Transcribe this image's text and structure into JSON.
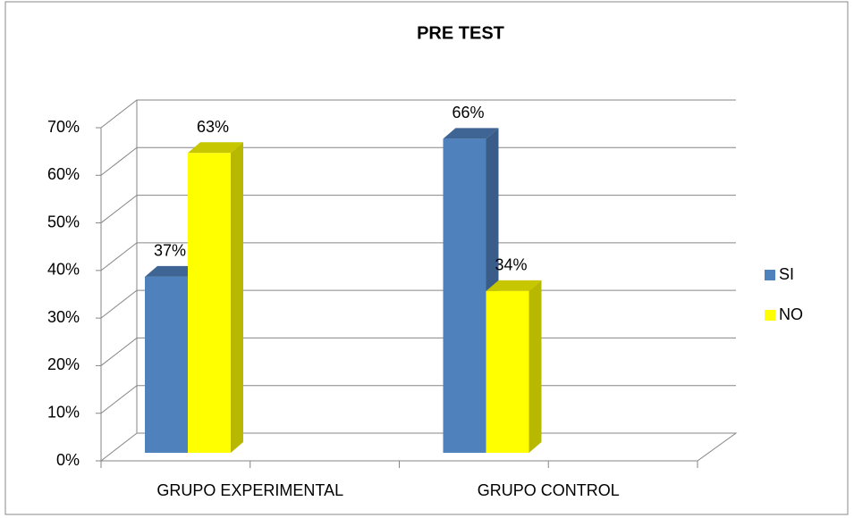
{
  "chart_data": {
    "type": "bar3d",
    "title": "PRE TEST",
    "categories": [
      "GRUPO EXPERIMENTAL",
      "GRUPO CONTROL"
    ],
    "series": [
      {
        "name": "SI",
        "color": "#4f81bd",
        "values": [
          37,
          66
        ],
        "value_labels": [
          "37%",
          "66%"
        ]
      },
      {
        "name": "NO",
        "color": "#ffff00",
        "values": [
          63,
          34
        ],
        "value_labels": [
          "63%",
          "34%"
        ]
      }
    ],
    "ylim": [
      0,
      70
    ],
    "yticks": [
      {
        "value": 0,
        "label": "0%"
      },
      {
        "value": 10,
        "label": "10%"
      },
      {
        "value": 20,
        "label": "20%"
      },
      {
        "value": 30,
        "label": "30%"
      },
      {
        "value": 40,
        "label": "40%"
      },
      {
        "value": 50,
        "label": "50%"
      },
      {
        "value": 60,
        "label": "60%"
      },
      {
        "value": 70,
        "label": "70%"
      }
    ],
    "grid": true,
    "legend": "right"
  }
}
